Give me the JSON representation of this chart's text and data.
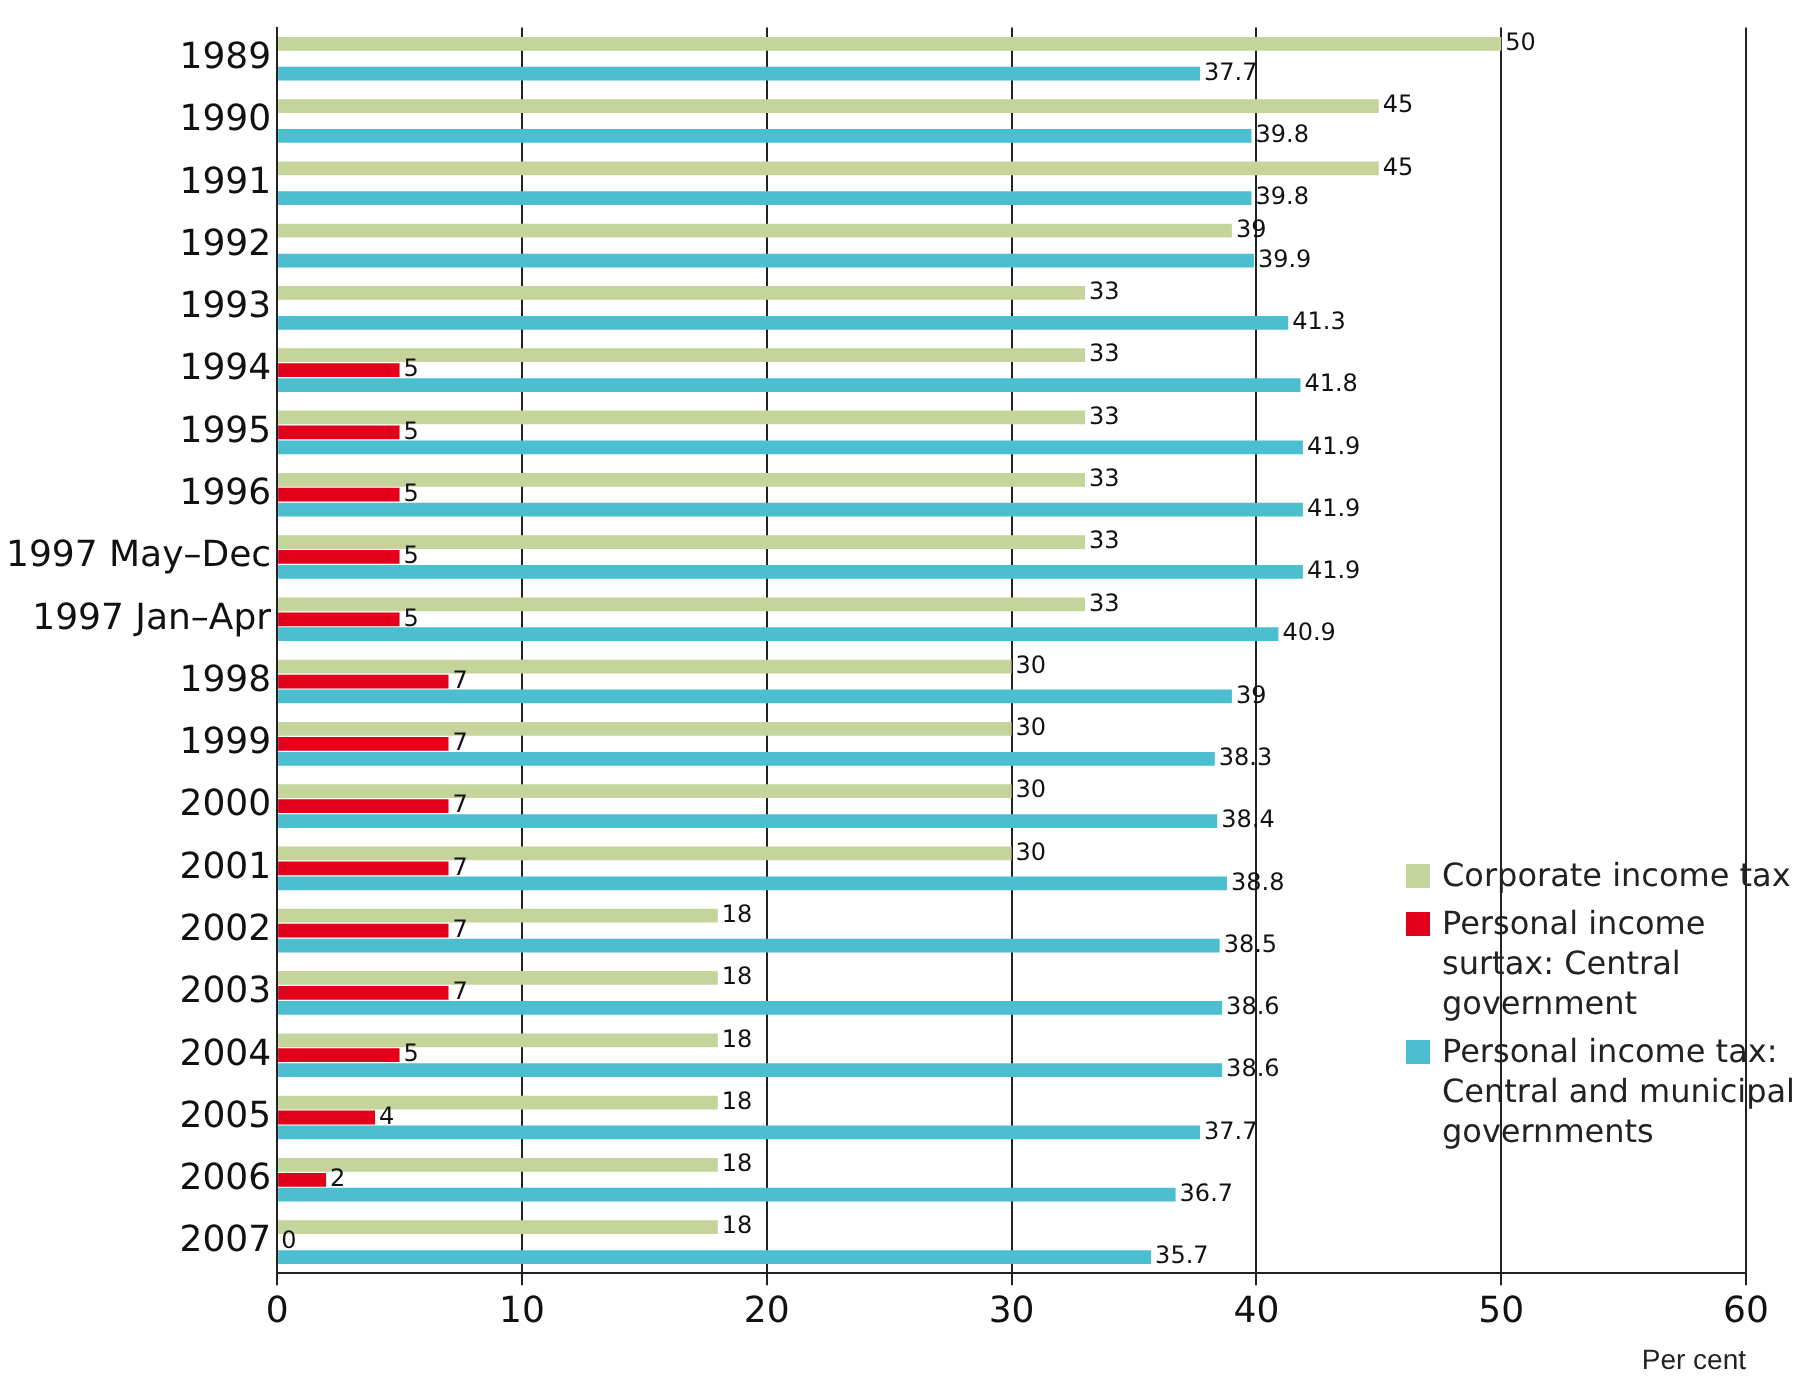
{
  "chart_data": {
    "type": "bar",
    "orientation": "horizontal",
    "xlabel": "Per cent",
    "categories": [
      "1989",
      "1990",
      "1991",
      "1992",
      "1993",
      "1994",
      "1995",
      "1996",
      "1997 May–Dec",
      "1997 Jan–Apr",
      "1998",
      "1999",
      "2000",
      "2001",
      "2002",
      "2003",
      "2004",
      "2005",
      "2006",
      "2007"
    ],
    "series": [
      {
        "name": "Corporate income tax",
        "color": "#c5d49a",
        "values": [
          50,
          45,
          45,
          39,
          33,
          33,
          33,
          33,
          33,
          33,
          30,
          30,
          30,
          30,
          18,
          18,
          18,
          18,
          18,
          18
        ]
      },
      {
        "name": "Personal income surtax: Central government",
        "color": "#e2001a",
        "values": [
          null,
          null,
          null,
          null,
          null,
          5,
          5,
          5,
          5,
          5,
          7,
          7,
          7,
          7,
          7,
          7,
          5,
          4,
          2,
          0
        ]
      },
      {
        "name": "Personal income tax: Central and municipal governments",
        "color": "#4bbfcf",
        "values": [
          37.7,
          39.8,
          39.8,
          39.9,
          41.3,
          41.8,
          41.9,
          41.9,
          41.9,
          40.9,
          39,
          38.3,
          38.4,
          38.8,
          38.5,
          38.6,
          38.6,
          37.7,
          36.7,
          35.7
        ]
      }
    ],
    "xlim": [
      0,
      60
    ],
    "xticks": [
      0,
      10,
      20,
      30,
      40,
      50,
      60
    ],
    "grid": "x",
    "legend": "bottom right",
    "data_labels": true
  }
}
